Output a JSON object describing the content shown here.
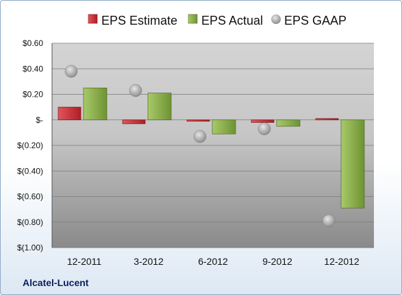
{
  "chart_data": {
    "type": "bar",
    "company": "Alcatel-Lucent",
    "categories": [
      "12-2011",
      "3-2012",
      "6-2012",
      "9-2012",
      "12-2012"
    ],
    "series": [
      {
        "name": "EPS Estimate",
        "kind": "bar",
        "color": "#c0282d",
        "values": [
          0.1,
          -0.03,
          -0.01,
          -0.02,
          0.0
        ]
      },
      {
        "name": "EPS Actual",
        "kind": "bar",
        "color": "#8cb04a",
        "values": [
          0.25,
          0.21,
          -0.11,
          -0.05,
          -0.69
        ]
      },
      {
        "name": "EPS GAAP",
        "kind": "marker",
        "color": "#a6a6a6",
        "values": [
          0.38,
          0.23,
          -0.13,
          -0.07,
          -0.79
        ]
      }
    ],
    "y_ticks": [
      {
        "value": 0.6,
        "label": "$0.60"
      },
      {
        "value": 0.4,
        "label": "$0.40"
      },
      {
        "value": 0.2,
        "label": "$0.20"
      },
      {
        "value": 0.0,
        "label": "$-"
      },
      {
        "value": -0.2,
        "label": "$(0.20)"
      },
      {
        "value": -0.4,
        "label": "$(0.40)"
      },
      {
        "value": -0.6,
        "label": "$(0.60)"
      },
      {
        "value": -0.8,
        "label": "$(0.80)"
      },
      {
        "value": -1.0,
        "label": "$(1.00)"
      }
    ],
    "ylim": [
      -1.0,
      0.6
    ],
    "grid": true,
    "legend_position": "top"
  }
}
